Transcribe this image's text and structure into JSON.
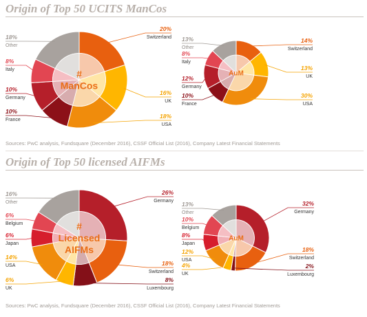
{
  "sections": [
    {
      "title": "Origin of Top 50 UCITS ManCos",
      "source": "Sources: PwC analysis, Fundsquare (December 2016), CSSF Official List (2016), Company Latest Financial Statements"
    },
    {
      "title": "Origin of Top 50 licensed AIFMs",
      "source": "Sources: PwC analysis, Fundsquare (December 2016), CSSF Official List (2016), Company Latest Financial Statements"
    }
  ],
  "colors": {
    "Switzerland": "#e8600f",
    "UK": "#ffb600",
    "USA": "#f08c0c",
    "France": "#8c1018",
    "Germany": "#b51f2a",
    "Italy": "#e24652",
    "Other": "#a8a29e",
    "Belgium": "#e24652",
    "Japan": "#d61e2d",
    "Luxembourg": "#841018",
    "title": "#b8b0aa",
    "center_text": "#ea6e16",
    "muted_text": "#a09a95"
  },
  "chart_data": [
    {
      "type": "pie",
      "title": "Origin of Top 50 UCITS ManCos",
      "center_label_lines": [
        "#",
        "ManCos"
      ],
      "slices": [
        {
          "label": "Switzerland",
          "percent": "20%",
          "value": 20
        },
        {
          "label": "UK",
          "percent": "16%",
          "value": 16
        },
        {
          "label": "USA",
          "percent": "18%",
          "value": 18
        },
        {
          "label": "France",
          "percent": "10%",
          "value": 10
        },
        {
          "label": "Germany",
          "percent": "10%",
          "value": 10
        },
        {
          "label": "Italy",
          "percent": "8%",
          "value": 8
        },
        {
          "label": "Other",
          "percent": "18%",
          "value": 18
        }
      ]
    },
    {
      "type": "pie",
      "title": "Origin of Top 50 UCITS ManCos",
      "center_label_lines": [
        "AuM"
      ],
      "slices": [
        {
          "label": "Switzerland",
          "percent": "14%",
          "value": 14
        },
        {
          "label": "UK",
          "percent": "13%",
          "value": 13
        },
        {
          "label": "USA",
          "percent": "30%",
          "value": 30
        },
        {
          "label": "France",
          "percent": "10%",
          "value": 10
        },
        {
          "label": "Germany",
          "percent": "12%",
          "value": 12
        },
        {
          "label": "Italy",
          "percent": "8%",
          "value": 8
        },
        {
          "label": "Other",
          "percent": "13%",
          "value": 13
        }
      ]
    },
    {
      "type": "pie",
      "title": "Origin of Top 50 licensed AIFMs",
      "center_label_lines": [
        "#",
        "Licensed",
        "AIFMs"
      ],
      "slices": [
        {
          "label": "Germany",
          "percent": "26%",
          "value": 26
        },
        {
          "label": "Switzerland",
          "percent": "18%",
          "value": 18
        },
        {
          "label": "Luxembourg",
          "percent": "8%",
          "value": 8
        },
        {
          "label": "UK",
          "percent": "6%",
          "value": 6
        },
        {
          "label": "USA",
          "percent": "14%",
          "value": 14
        },
        {
          "label": "Japan",
          "percent": "6%",
          "value": 6
        },
        {
          "label": "Belgium",
          "percent": "6%",
          "value": 6
        },
        {
          "label": "Other",
          "percent": "16%",
          "value": 16
        }
      ]
    },
    {
      "type": "pie",
      "title": "Origin of Top 50 licensed AIFMs",
      "center_label_lines": [
        "AuM"
      ],
      "slices": [
        {
          "label": "Germany",
          "percent": "32%",
          "value": 32
        },
        {
          "label": "Switzerland",
          "percent": "18%",
          "value": 18
        },
        {
          "label": "Luxembourg",
          "percent": "2%",
          "value": 2
        },
        {
          "label": "UK",
          "percent": "4%",
          "value": 4
        },
        {
          "label": "USA",
          "percent": "12%",
          "value": 12
        },
        {
          "label": "Japan",
          "percent": "8%",
          "value": 8
        },
        {
          "label": "Belgium",
          "percent": "10%",
          "value": 10
        },
        {
          "label": "Other",
          "percent": "13%",
          "value": 13
        }
      ]
    }
  ]
}
